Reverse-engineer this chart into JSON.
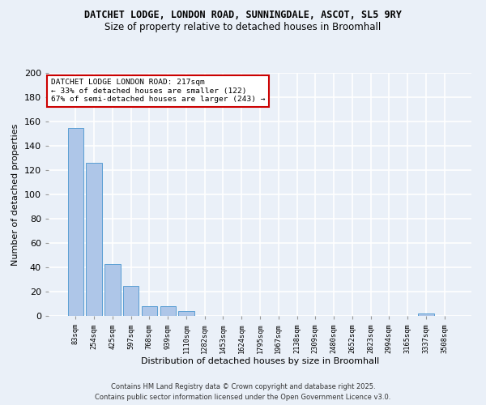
{
  "title1": "DATCHET LODGE, LONDON ROAD, SUNNINGDALE, ASCOT, SL5 9RY",
  "title2": "Size of property relative to detached houses in Broomhall",
  "xlabel": "Distribution of detached houses by size in Broomhall",
  "ylabel": "Number of detached properties",
  "categories": [
    "83sqm",
    "254sqm",
    "425sqm",
    "597sqm",
    "768sqm",
    "939sqm",
    "1110sqm",
    "1282sqm",
    "1453sqm",
    "1624sqm",
    "1795sqm",
    "1967sqm",
    "2138sqm",
    "2309sqm",
    "2480sqm",
    "2652sqm",
    "2823sqm",
    "2994sqm",
    "3165sqm",
    "3337sqm",
    "3508sqm"
  ],
  "values": [
    155,
    126,
    43,
    25,
    8,
    8,
    4,
    0,
    0,
    0,
    0,
    0,
    0,
    0,
    0,
    0,
    0,
    0,
    0,
    2,
    0
  ],
  "bar_color": "#aec6e8",
  "bar_edge_color": "#5a9fd4",
  "annotation_box_text": "DATCHET LODGE LONDON ROAD: 217sqm\n← 33% of detached houses are smaller (122)\n67% of semi-detached houses are larger (243) →",
  "annotation_box_color": "#ffffff",
  "annotation_box_edge_color": "#cc0000",
  "footnote": "Contains HM Land Registry data © Crown copyright and database right 2025.\nContains public sector information licensed under the Open Government Licence v3.0.",
  "bg_color": "#eaf0f8",
  "plot_bg_color": "#eaf0f8",
  "grid_color": "#ffffff",
  "ylim": [
    0,
    200
  ],
  "yticks": [
    0,
    20,
    40,
    60,
    80,
    100,
    120,
    140,
    160,
    180,
    200
  ]
}
